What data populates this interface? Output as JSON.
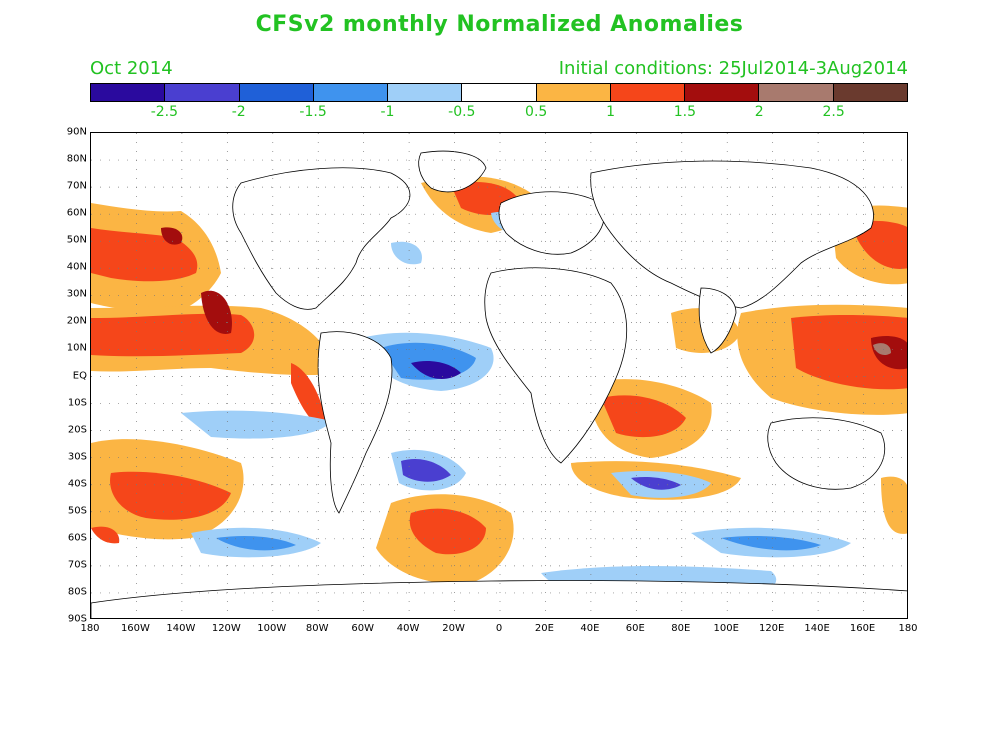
{
  "title": "CFSv2 monthly Normalized Anomalies",
  "valid_month": "Oct 2014",
  "initial_conditions": "Initial conditions: 25Jul2014-3Aug2014",
  "colorbar": {
    "colors": [
      "#2a0a9e",
      "#4a3fd0",
      "#1f60d8",
      "#3f93ee",
      "#9fcff8",
      "#ffffff",
      "#fbb544",
      "#f5461a",
      "#a30d0d",
      "#a87a6e",
      "#6a3a2e"
    ],
    "labels": [
      "-2.5",
      "-2",
      "-1.5",
      "-1",
      "-0.5",
      "0.5",
      "1",
      "1.5",
      "2",
      "2.5"
    ]
  },
  "latitude_labels": [
    "90N",
    "80N",
    "70N",
    "60N",
    "50N",
    "40N",
    "30N",
    "20N",
    "10N",
    "EQ",
    "10S",
    "20S",
    "30S",
    "40S",
    "50S",
    "60S",
    "70S",
    "80S",
    "90S"
  ],
  "longitude_labels": [
    "180",
    "160W",
    "140W",
    "120W",
    "100W",
    "80W",
    "60W",
    "40W",
    "20W",
    "0",
    "20E",
    "40E",
    "60E",
    "80E",
    "100E",
    "120E",
    "140E",
    "160E",
    "180"
  ]
}
